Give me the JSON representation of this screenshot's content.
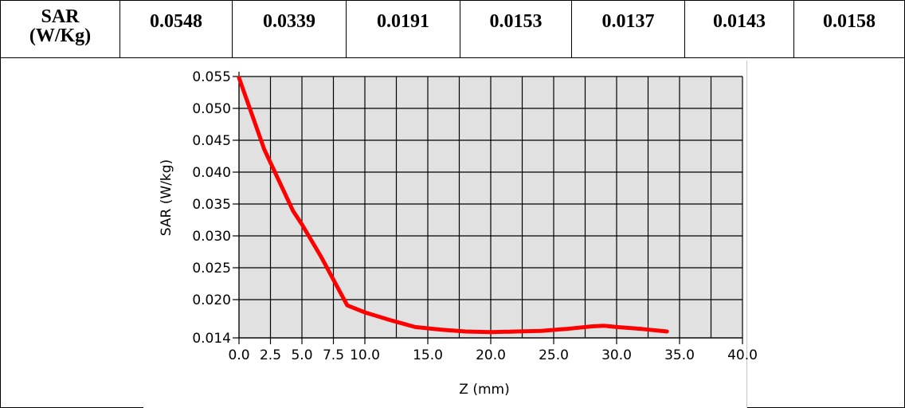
{
  "table": {
    "header_line1": "SAR",
    "header_line2": "(W/Kg)",
    "values": [
      "0.0548",
      "0.0339",
      "0.0191",
      "0.0153",
      "0.0137",
      "0.0143",
      "0.0158"
    ]
  },
  "chart_data": {
    "type": "line",
    "xlabel": "Z (mm)",
    "ylabel": "SAR (W/kg)",
    "xlim": [
      0,
      40
    ],
    "ylim": [
      0.014,
      0.055
    ],
    "x_tick_labels": [
      "0.0",
      "2.5",
      "5.0",
      "7.5",
      "10.0",
      "15.0",
      "20.0",
      "25.0",
      "30.0",
      "35.0",
      "40.0"
    ],
    "y_tick_labels": [
      "0.055",
      "0.050",
      "0.045",
      "0.040",
      "0.035",
      "0.030",
      "0.025",
      "0.020",
      "0.014"
    ],
    "grid": true,
    "series": [
      {
        "color": "#ff0000",
        "x": [
          0,
          2,
          4.3,
          5,
          6.5,
          8.6,
          10,
          12,
          14,
          16,
          18,
          20,
          22,
          24,
          26,
          28,
          29,
          30,
          32,
          34
        ],
        "y": [
          0.0548,
          0.0436,
          0.0339,
          0.0318,
          0.0268,
          0.0191,
          0.018,
          0.0168,
          0.0157,
          0.0153,
          0.015,
          0.0149,
          0.015,
          0.0151,
          0.0154,
          0.0158,
          0.0159,
          0.0157,
          0.0154,
          0.015
        ]
      }
    ]
  },
  "style": {
    "plot_background": "#e1e1e1",
    "line_color": "#ff0000",
    "grid_color": "#000000"
  }
}
